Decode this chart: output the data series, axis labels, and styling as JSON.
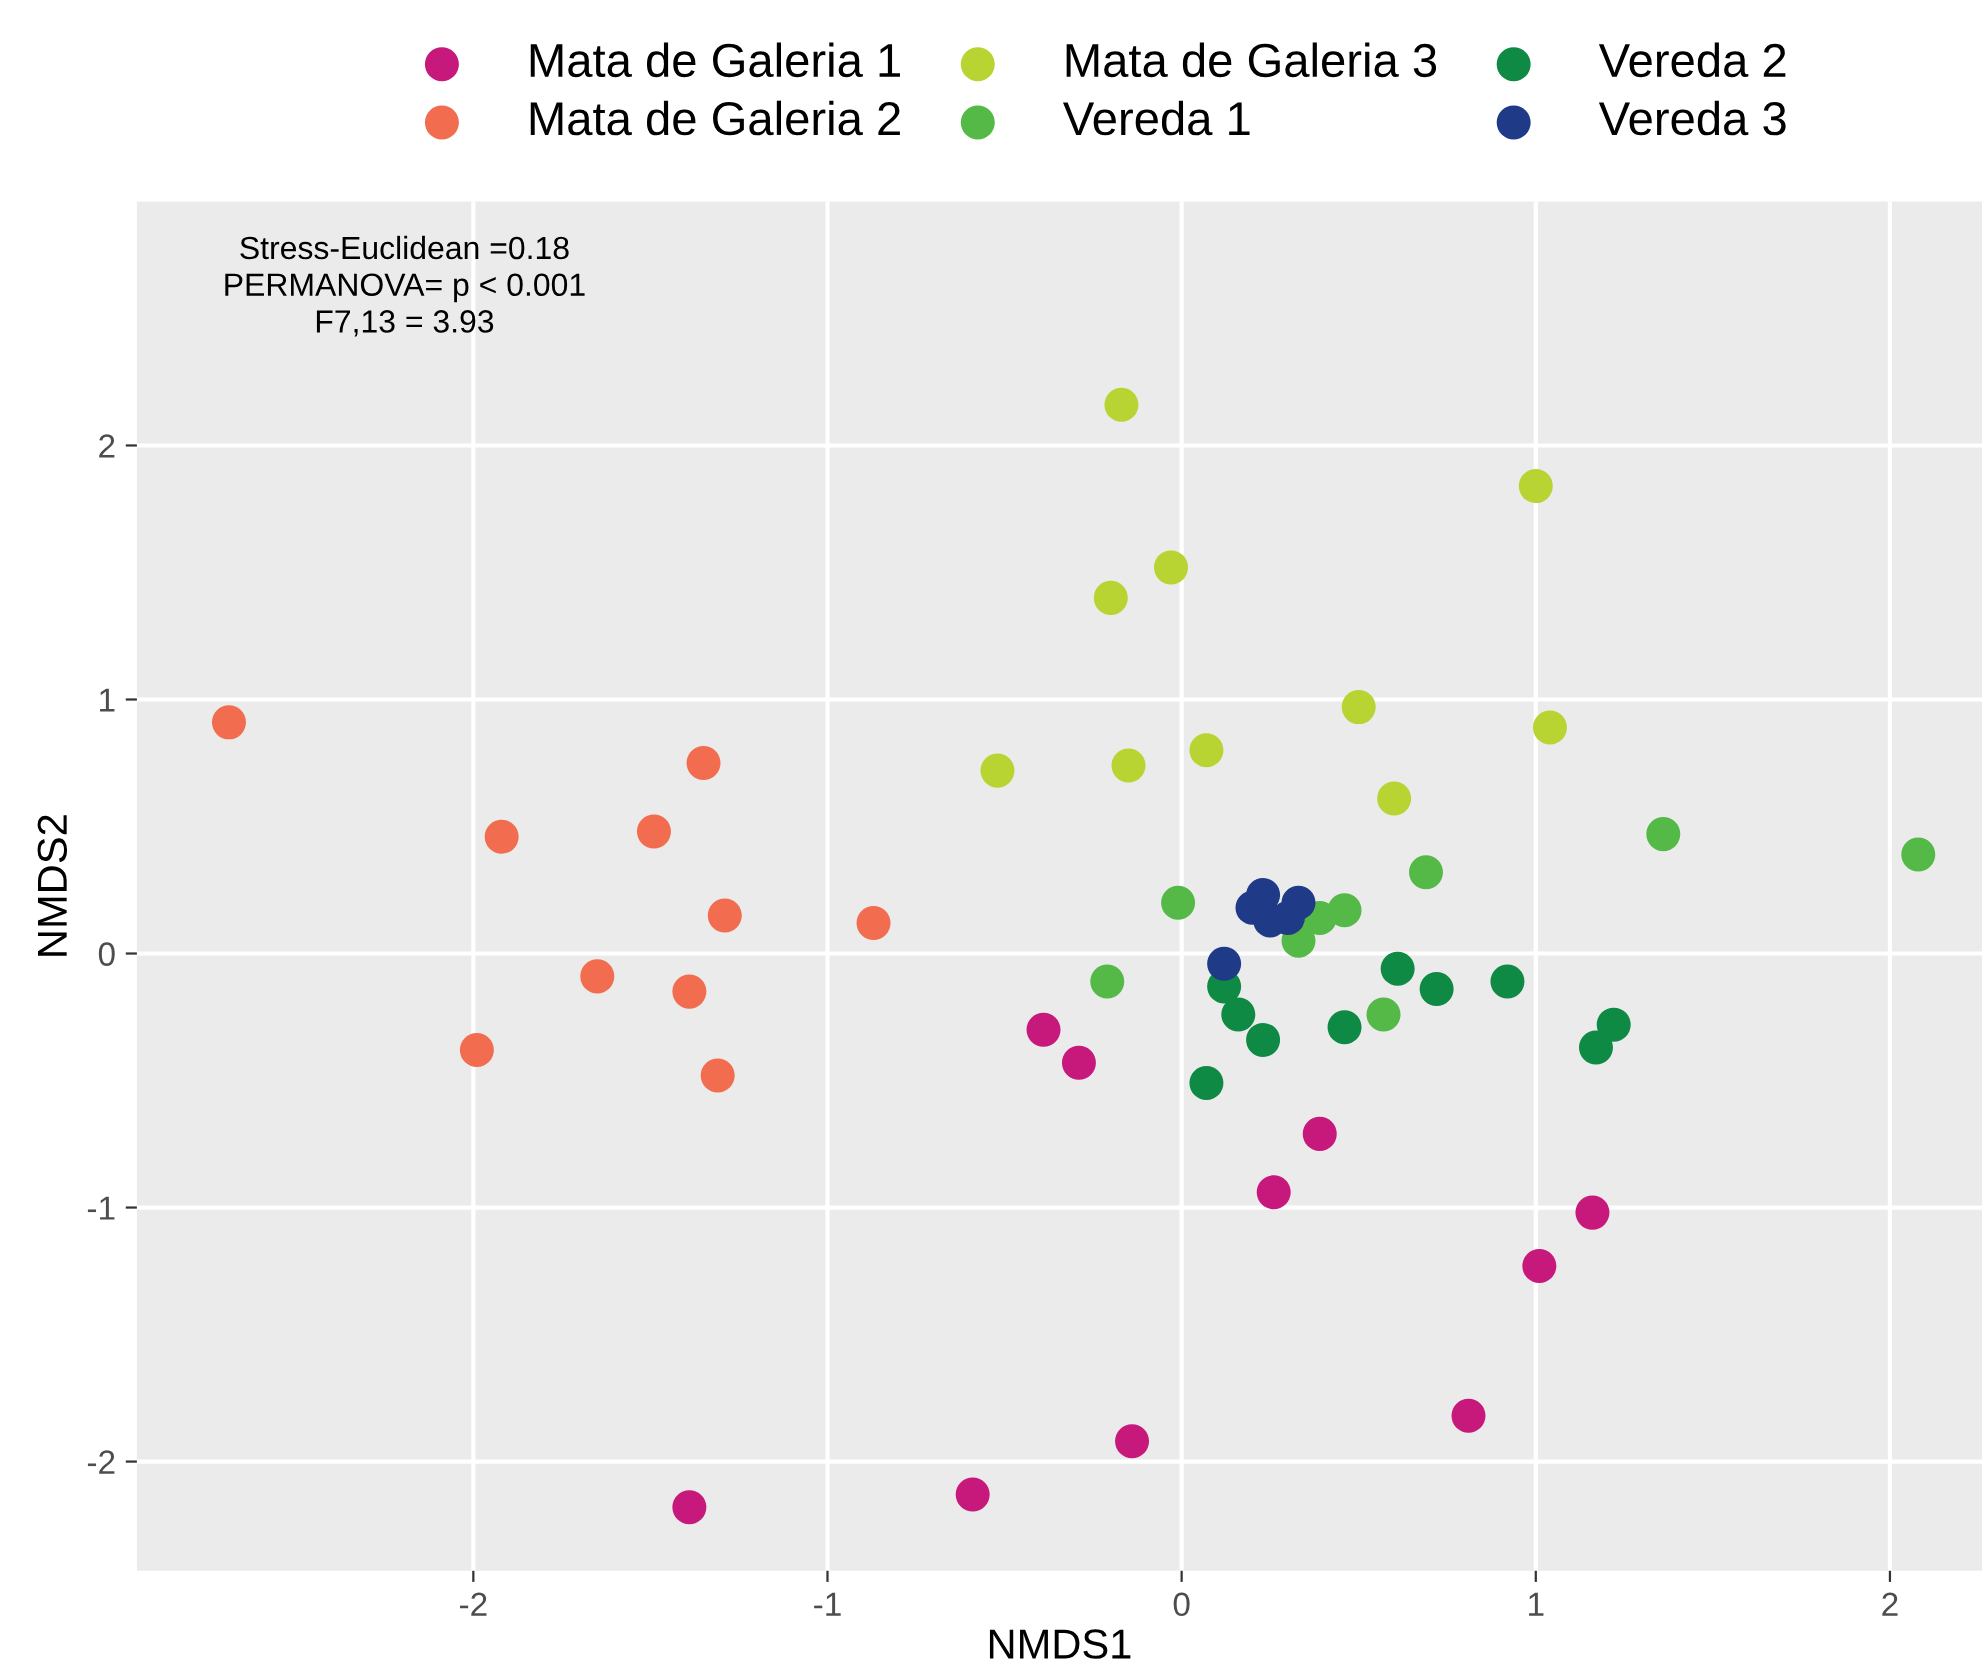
{
  "chart_data": {
    "type": "scatter",
    "xlabel": "NMDS1",
    "ylabel": "NMDS2",
    "xlim": [
      -2.95,
      2.26
    ],
    "ylim": [
      -2.43,
      2.96
    ],
    "xticks": [
      -2,
      -1,
      0,
      1,
      2
    ],
    "yticks": [
      -2,
      -1,
      0,
      1,
      2
    ],
    "grid": true,
    "legend": "top",
    "marker": "circle",
    "annotations": [
      "Stress-Euclidean =0.18\nPERMANOVA= p < 0.001\nF7,13 = 3.93"
    ],
    "series": [
      {
        "name": "Mata de Galeria 1",
        "color": "#c7197b",
        "x": [
          -0.39,
          -0.29,
          0.39,
          0.26,
          1.16,
          1.01,
          0.81,
          -0.14,
          -0.59,
          -1.39
        ],
        "values": [
          -0.3,
          -0.43,
          -0.71,
          -0.94,
          -1.02,
          -1.23,
          -1.82,
          -1.92,
          -2.13,
          -2.18
        ]
      },
      {
        "name": "Mata de Galeria 2",
        "color": "#f26d4f",
        "x": [
          -2.69,
          -1.35,
          -1.92,
          -1.49,
          -1.29,
          -0.87,
          -1.65,
          -1.39,
          -1.99,
          -1.31
        ],
        "values": [
          0.91,
          0.75,
          0.46,
          0.48,
          0.15,
          0.12,
          -0.09,
          -0.15,
          -0.38,
          -0.48
        ]
      },
      {
        "name": "Mata de Galeria 3",
        "color": "#b8d433",
        "x": [
          -0.17,
          1.0,
          -0.2,
          -0.03,
          0.5,
          -0.52,
          -0.15,
          0.07,
          0.6,
          1.04
        ],
        "values": [
          2.16,
          1.84,
          1.4,
          1.52,
          0.97,
          0.72,
          0.74,
          0.8,
          0.61,
          0.89
        ]
      },
      {
        "name": "Vereda 1",
        "color": "#55b947",
        "x": [
          1.36,
          2.08,
          0.69,
          -0.01,
          0.39,
          0.46,
          0.33,
          0.57,
          -0.21
        ],
        "values": [
          0.47,
          0.39,
          0.32,
          0.2,
          0.14,
          0.17,
          0.05,
          -0.24,
          -0.11
        ]
      },
      {
        "name": "Vereda 2",
        "color": "#0e8a44",
        "x": [
          0.12,
          0.16,
          0.23,
          0.07,
          0.61,
          0.72,
          0.92,
          0.46,
          1.22,
          1.17
        ],
        "values": [
          -0.13,
          -0.24,
          -0.34,
          -0.51,
          -0.06,
          -0.14,
          -0.11,
          -0.29,
          -0.28,
          -0.37
        ]
      },
      {
        "name": "Vereda 3",
        "color": "#1f3b87",
        "x": [
          0.12,
          0.23,
          0.2,
          0.25,
          0.33,
          0.3
        ],
        "values": [
          -0.04,
          0.23,
          0.18,
          0.13,
          0.2,
          0.14
        ]
      }
    ]
  }
}
